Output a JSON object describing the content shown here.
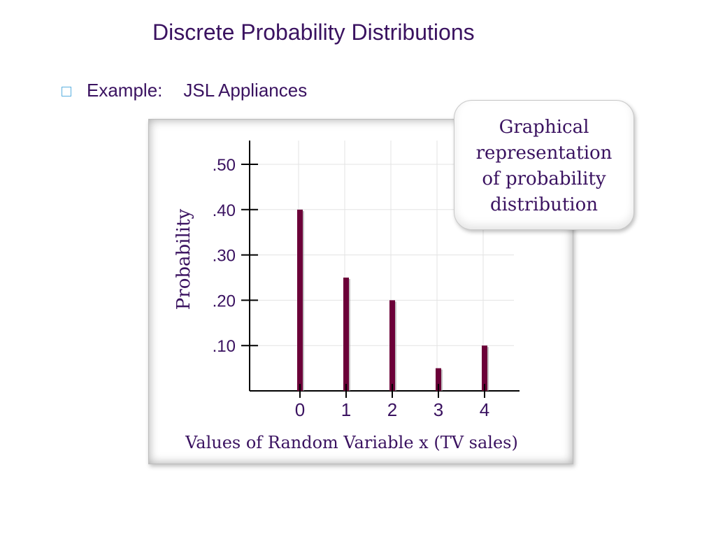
{
  "slide": {
    "title": "Discrete Probability Distributions",
    "bullet_label": "Example:",
    "bullet_value": "JSL Appliances"
  },
  "callout": {
    "lines": [
      "Graphical",
      "representation",
      "of probability",
      "distribution"
    ]
  },
  "colors": {
    "title": "#3a1260",
    "bar": "#6b0038",
    "axis": "#000000",
    "bullet": "#5ab0e0"
  },
  "chart_data": {
    "type": "bar",
    "categories": [
      "0",
      "1",
      "2",
      "3",
      "4"
    ],
    "values": [
      0.4,
      0.25,
      0.2,
      0.05,
      0.1
    ],
    "yticks": [
      ".10",
      ".20",
      ".30",
      ".40",
      ".50"
    ],
    "ytick_values": [
      0.1,
      0.2,
      0.3,
      0.4,
      0.5
    ],
    "ylabel": "Probability",
    "xlabel": "Values of Random Variable x (TV sales)",
    "ylim": [
      0,
      0.5
    ],
    "grid": true,
    "legend": "none"
  }
}
